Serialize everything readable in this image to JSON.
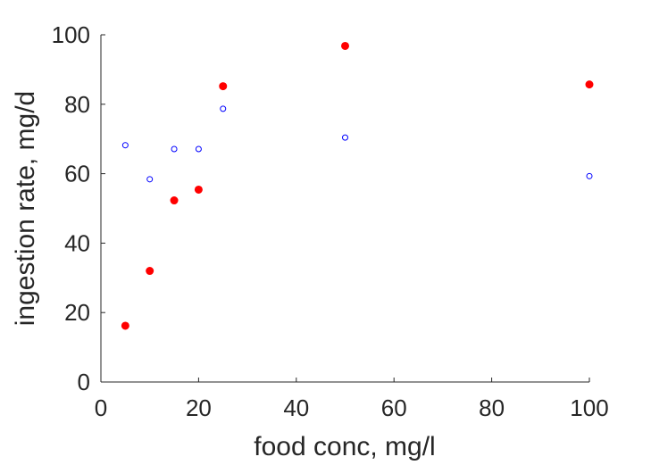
{
  "chart_data": {
    "type": "scatter",
    "xlabel": "food conc, mg/l",
    "ylabel": "ingestion rate, mg/d",
    "xlim": [
      0,
      100
    ],
    "ylim": [
      0,
      100
    ],
    "xticks": [
      "0",
      "20",
      "40",
      "60",
      "80",
      "100"
    ],
    "yticks": [
      "0",
      "20",
      "40",
      "60",
      "80",
      "100"
    ],
    "grid": false,
    "box": false,
    "series": [
      {
        "color": "#ff0000",
        "marker": "filled-circle",
        "x": [
          5,
          10,
          15,
          20,
          25,
          50,
          100
        ],
        "y": [
          16.2,
          32,
          52.3,
          55.4,
          85.2,
          96.8,
          85.7
        ]
      },
      {
        "color": "#0000ff",
        "marker": "open-circle",
        "x": [
          5,
          10,
          15,
          20,
          25,
          50,
          100
        ],
        "y": [
          68.2,
          58.4,
          67.1,
          67.1,
          78.7,
          70.4,
          59.3
        ]
      }
    ]
  }
}
